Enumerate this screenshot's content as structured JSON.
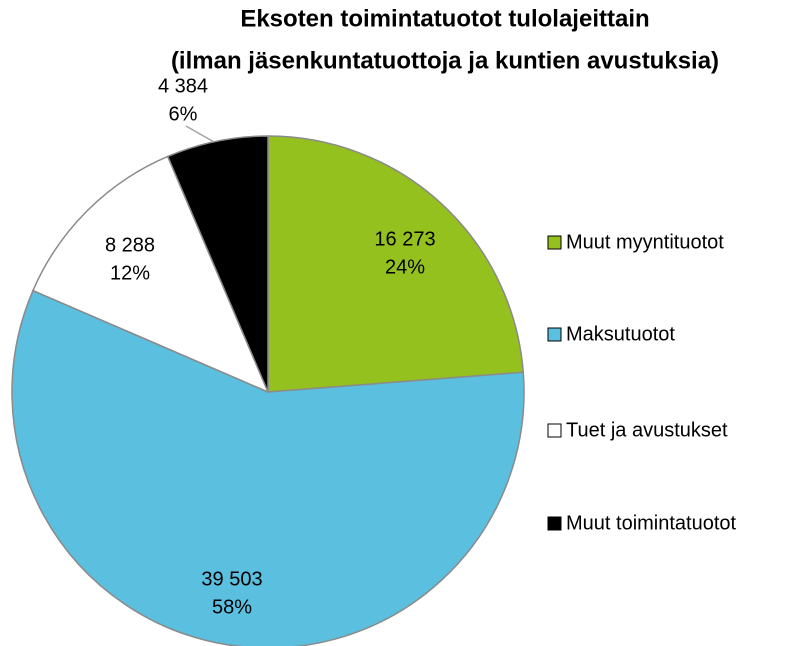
{
  "chart_data": {
    "type": "pie",
    "title_lines": [
      "Eksoten toimintatuotot tulolajeittain",
      "(ilman jäsenkuntatuottoja ja kuntien avustuksia)"
    ],
    "categories": [
      "Muut myyntituotot",
      "Maksutuotot",
      "Tuet ja avustukset",
      "Muut toimintatuotot"
    ],
    "values": [
      16273,
      39503,
      8288,
      4384
    ],
    "value_labels": [
      "16 273",
      "39 503",
      "8 288",
      "4 384"
    ],
    "percents": [
      24,
      58,
      12,
      6
    ],
    "percent_labels": [
      "24%",
      "58%",
      "12%",
      "6%"
    ],
    "colors": [
      "#95c11f",
      "#5bbfe0",
      "#ffffff",
      "#000000"
    ],
    "legend": "right"
  }
}
